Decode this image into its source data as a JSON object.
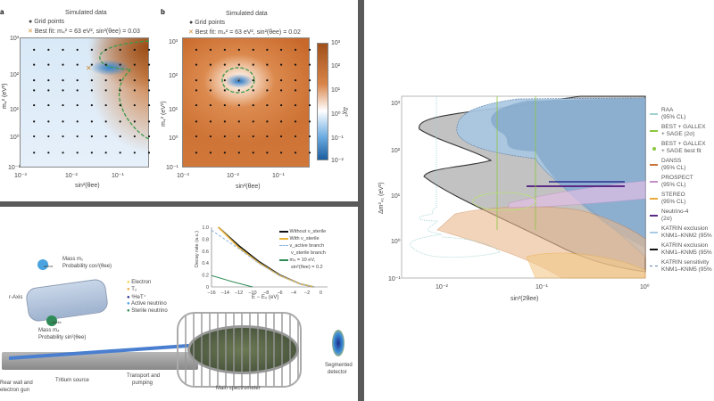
{
  "panel_a": {
    "label": "a",
    "title": "Simulated data",
    "legend_grid": "Grid points",
    "legend_best_fit": "Best fit: m₄² = 63 eV², sin²(θee) = 0.03",
    "xlabel": "sin²(θee)",
    "ylabel": "m₄² (eV²)",
    "xticks": [
      "10⁻³",
      "10⁻²",
      "10⁻¹"
    ],
    "yticks": [
      "10³",
      "10²",
      "10¹",
      "10⁰",
      "10⁻¹"
    ]
  },
  "panel_b": {
    "label": "b",
    "title": "Simulated data",
    "legend_grid": "Grid points",
    "legend_best_fit": "Best fit: m₄² = 63 eV², sin²(θee) = 0.02",
    "xlabel": "sin²(θee)",
    "ylabel": "m₄² (eV²)",
    "xticks": [
      "10⁻³",
      "10⁻²",
      "10⁻¹"
    ],
    "yticks": [
      "10³",
      "10²",
      "10¹",
      "10⁰",
      "10⁻¹"
    ],
    "colorbar_label": "Δχ²",
    "colorbar_ticks": [
      "10³",
      "10²",
      "10¹",
      "10⁰",
      "10⁻¹",
      "10⁻²"
    ]
  },
  "diagram": {
    "labels": {
      "active_mass": "Mass m₁",
      "active_prob": "Probability cos²(θee)",
      "sterile_mass": "Mass m₄",
      "sterile_prob": "Probability sin²(θee)",
      "r_axis": "r-Axis",
      "rear_wall": "Rear wall and",
      "electron_gun": "electron gun",
      "tritium_source": "Tritium source",
      "transport": "Transport and",
      "pumping": "pumping",
      "main_spectrometer": "Main spectrometer",
      "segmented": "Segmented",
      "detector": "detector",
      "active_tag": "active",
      "sterile_tag": "sterile"
    },
    "legend": [
      "Electron",
      "T₂",
      "³HeT⁺",
      "Active neutrino",
      "Sterile neutrino"
    ],
    "colors": {
      "electron": "#f2d24a",
      "t2": "#e9a93c",
      "het": "#2b2f8f",
      "active": "#4aa3df",
      "sterile": "#2e8b57"
    }
  },
  "chart_data": [
    {
      "id": "panel-a-heatmap",
      "type": "heatmap",
      "title": "Simulated data",
      "xlabel": "sin²(θee)",
      "ylabel": "m₄² (eV²)",
      "xscale": "log",
      "yscale": "log",
      "xlim": [
        0.001,
        0.5
      ],
      "ylim": [
        0.1,
        1500
      ],
      "grid_points_x": [
        0.002,
        0.004,
        0.008,
        0.016,
        0.032,
        0.063,
        0.125,
        0.25,
        0.5
      ],
      "grid_points_y": [
        0.3,
        1,
        3,
        10,
        30,
        63,
        200,
        600
      ],
      "best_fit": {
        "m4_sq": 63,
        "sin2": 0.03
      }
    },
    {
      "id": "panel-b-heatmap",
      "type": "heatmap",
      "title": "Simulated data",
      "xlabel": "sin²(θee)",
      "ylabel": "m₄² (eV²)",
      "xscale": "log",
      "yscale": "log",
      "xlim": [
        0.001,
        0.5
      ],
      "ylim": [
        0.1,
        1500
      ],
      "colorbar_range": [
        0.01,
        1000
      ],
      "best_fit": {
        "m4_sq": 63,
        "sin2": 0.02
      }
    },
    {
      "id": "decay-rate-inset",
      "type": "line",
      "xlabel": "E − E₀ (eV)",
      "ylabel": "Decay rate (a.u.)",
      "xlim": [
        -16,
        1
      ],
      "ylim": [
        0,
        1.0
      ],
      "xticks": [
        "−16",
        "−14",
        "−12",
        "−10",
        "−8",
        "−6",
        "−4",
        "−2",
        "0"
      ],
      "yticks": [
        "1.0",
        "0.8",
        "0.6",
        "0.4",
        "0.2",
        "0"
      ],
      "series": [
        {
          "name": "Without ν_sterile",
          "color": "#111111",
          "x": [
            -15,
            -12,
            -9,
            -6,
            -3,
            -1
          ],
          "y": [
            1.0,
            0.69,
            0.42,
            0.2,
            0.05,
            0.0
          ]
        },
        {
          "name": "With ν_sterile",
          "color": "#e9b53c",
          "x": [
            -15,
            -12,
            -9,
            -6,
            -3,
            -1
          ],
          "y": [
            1.0,
            0.66,
            0.4,
            0.19,
            0.05,
            0.0
          ]
        },
        {
          "name": "ν_active branch",
          "color": "#8fb4e0",
          "x": [
            -16,
            -12,
            -9,
            -6,
            -3,
            -1
          ],
          "y": [
            0.95,
            0.64,
            0.39,
            0.19,
            0.05,
            0.0
          ]
        },
        {
          "name": "ν_sterile branch",
          "color": "#2e8b57",
          "x": [
            -16,
            -13,
            -10
          ],
          "y": [
            0.19,
            0.09,
            0.0
          ]
        }
      ],
      "legend_note": [
        "m₄ = 10 eV,",
        "sin²(θee) = 0.2"
      ]
    },
    {
      "id": "exclusion-contours",
      "type": "area",
      "xlabel": "sin²(2θee)",
      "ylabel": "Δm²₄₁ (eV²)",
      "xscale": "log",
      "yscale": "log",
      "xlim": [
        0.004,
        1
      ],
      "ylim": [
        0.1,
        1500
      ],
      "xticks": [
        "10⁻²",
        "10⁻¹",
        "10⁰"
      ],
      "yticks": [
        "10³",
        "10²",
        "10¹",
        "10⁰",
        "10⁻¹"
      ],
      "legend_position": "right",
      "series": [
        {
          "name": "RAA",
          "sub": "(95% CL)",
          "color": "#9fd3cf"
        },
        {
          "name": "BEST + GALLEX",
          "sub": "+ SAGE (2σ)",
          "color": "#8cc63f"
        },
        {
          "name": "BEST + GALLEX",
          "sub": "+ SAGE best fit",
          "color": "#8cc63f"
        },
        {
          "name": "DANSS",
          "sub": "(95% CL)",
          "color": "#c8743a"
        },
        {
          "name": "PROSPECT",
          "sub": "(95% CL)",
          "color": "#c58ec8"
        },
        {
          "name": "STEREO",
          "sub": "(95% CL)",
          "color": "#e9a93c"
        },
        {
          "name": "Neutrino-4",
          "sub": "(2σ)",
          "color": "#5b2a86"
        },
        {
          "name": "KATRIN exclusion",
          "sub": "KNM1–KNM2 (95%",
          "color": "#a9cbe6"
        },
        {
          "name": "KATRIN exclusion",
          "sub": "KNM1–KNM5 (95%",
          "color": "#111111"
        },
        {
          "name": "KATRIN sensitivity",
          "sub": "KNM1–KNM5 (95%",
          "color": "#5b7fa6"
        }
      ]
    }
  ]
}
